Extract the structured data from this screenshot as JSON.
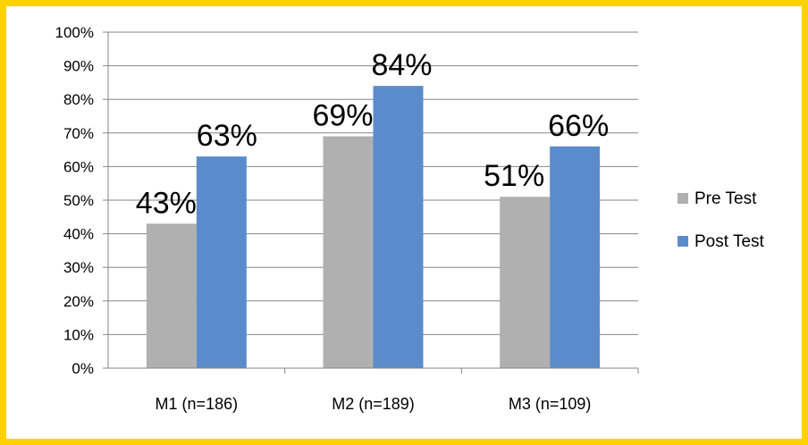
{
  "chart_data": {
    "type": "bar",
    "categories": [
      "M1 (n=186)",
      "M2 (n=189)",
      "M3 (n=109)"
    ],
    "series": [
      {
        "name": "Pre Test",
        "values": [
          43,
          69,
          51
        ],
        "color": "#b0b0b0",
        "data_labels": [
          "43%",
          "69%",
          "51%"
        ]
      },
      {
        "name": "Post Test",
        "values": [
          63,
          84,
          66
        ],
        "color": "#5a8ccc",
        "data_labels": [
          "63%",
          "84%",
          "66%"
        ]
      }
    ],
    "title": "",
    "xlabel": "",
    "ylabel": "",
    "ylim": [
      0,
      100
    ],
    "y_ticks": [
      "0%",
      "10%",
      "20%",
      "30%",
      "40%",
      "50%",
      "60%",
      "70%",
      "80%",
      "90%",
      "100%"
    ],
    "grid": true,
    "legend": "right",
    "border_color": "#ffd200",
    "grid_color": "#868686"
  }
}
